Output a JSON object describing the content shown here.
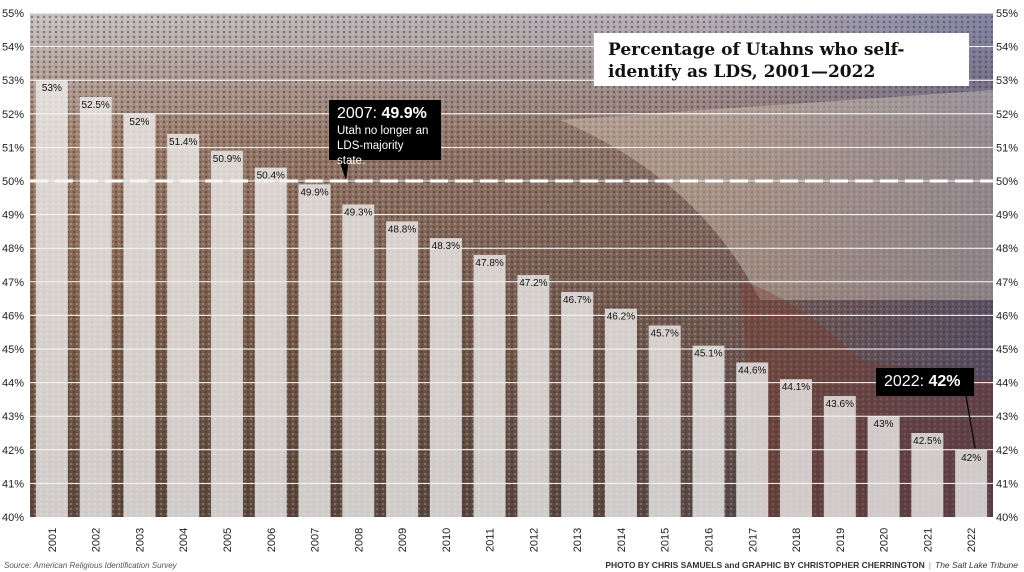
{
  "chart_data": {
    "type": "bar",
    "title": "Percentage of Utahns who self-identify as LDS, 2001—2022",
    "categories": [
      "2001",
      "2002",
      "2003",
      "2004",
      "2005",
      "2006",
      "2007",
      "2008",
      "2009",
      "2010",
      "2011",
      "2012",
      "2013",
      "2014",
      "2015",
      "2016",
      "2017",
      "2018",
      "2019",
      "2020",
      "2021",
      "2022"
    ],
    "values": [
      53,
      52.5,
      52,
      51.4,
      50.9,
      50.4,
      49.9,
      49.3,
      48.8,
      48.3,
      47.8,
      47.2,
      46.7,
      46.2,
      45.7,
      45.1,
      44.6,
      44.1,
      43.6,
      43,
      42.5,
      42
    ],
    "value_labels": [
      "53%",
      "52.5%",
      "52%",
      "51.4%",
      "50.9%",
      "50.4%",
      "49.9%",
      "49.3%",
      "48.8%",
      "48.3%",
      "47.8%",
      "47.2%",
      "46.7%",
      "46.2%",
      "45.7%",
      "45.1%",
      "44.6%",
      "44.1%",
      "43.6%",
      "43%",
      "42.5%",
      "42%"
    ],
    "ylim": [
      40,
      55
    ],
    "yticks": [
      "40%",
      "41%",
      "42%",
      "43%",
      "44%",
      "45%",
      "46%",
      "47%",
      "48%",
      "49%",
      "50%",
      "51%",
      "52%",
      "53%",
      "54%",
      "55%"
    ],
    "grid": true,
    "reference_line": 50,
    "xlabel": "",
    "ylabel": "",
    "annotations": [
      {
        "year": "2007",
        "head_prefix": "2007: ",
        "head_value": "49.9%",
        "text": "Utah no longer an LDS-majority state."
      },
      {
        "year": "2022",
        "head_prefix": "2022: ",
        "head_value": "42%"
      }
    ]
  },
  "colors": {
    "bar": "#f2f2f2",
    "grid": "#ffffff",
    "background_photo_top": "#b9a89a",
    "background_photo_seats": "#8a6b55",
    "reference_line": "#ffffff"
  },
  "footer": {
    "source": "Source: American Religious Identification Survey",
    "credit": "PHOTO BY CHRIS SAMUELS and GRAPHIC BY CHRISTOPHER CHERRINGTON",
    "separator": "|",
    "publisher": "The Salt Lake Tribune"
  }
}
